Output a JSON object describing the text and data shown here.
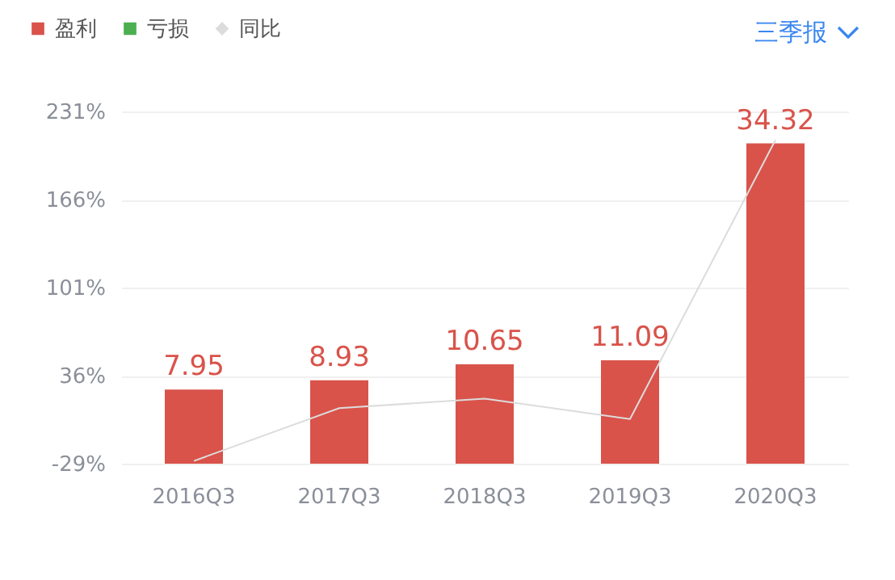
{
  "chart_data": {
    "type": "bar",
    "categories": [
      "2016Q3",
      "2017Q3",
      "2018Q3",
      "2019Q3",
      "2020Q3"
    ],
    "series": [
      {
        "name": "盈利",
        "axis": "y2",
        "color": "#d9534a",
        "values": [
          7.95,
          8.93,
          10.65,
          11.09,
          34.32
        ],
        "value_labels": [
          "7.95",
          "8.93",
          "10.65",
          "11.09",
          "34.32"
        ]
      },
      {
        "name": "亏损",
        "axis": "y2",
        "color": "#4caf50",
        "values": [
          null,
          null,
          null,
          null,
          null
        ]
      },
      {
        "name": "同比",
        "type": "line",
        "color": "#dcdcdc",
        "values": [
          -27,
          12,
          19,
          4,
          210
        ]
      }
    ],
    "y2lim": [
      0,
      37.75
    ],
    "ylim": [
      -29,
      231
    ],
    "yticks": [
      {
        "value": -29,
        "label": "-29%"
      },
      {
        "value": 36,
        "label": "36%"
      },
      {
        "value": 101,
        "label": "101%"
      },
      {
        "value": 166,
        "label": "166%"
      },
      {
        "value": 231,
        "label": "231%"
      }
    ],
    "grid": "y",
    "legend": "top left",
    "marker": "none",
    "line_style": "solid",
    "annotations": [
      "三季报"
    ]
  }
}
